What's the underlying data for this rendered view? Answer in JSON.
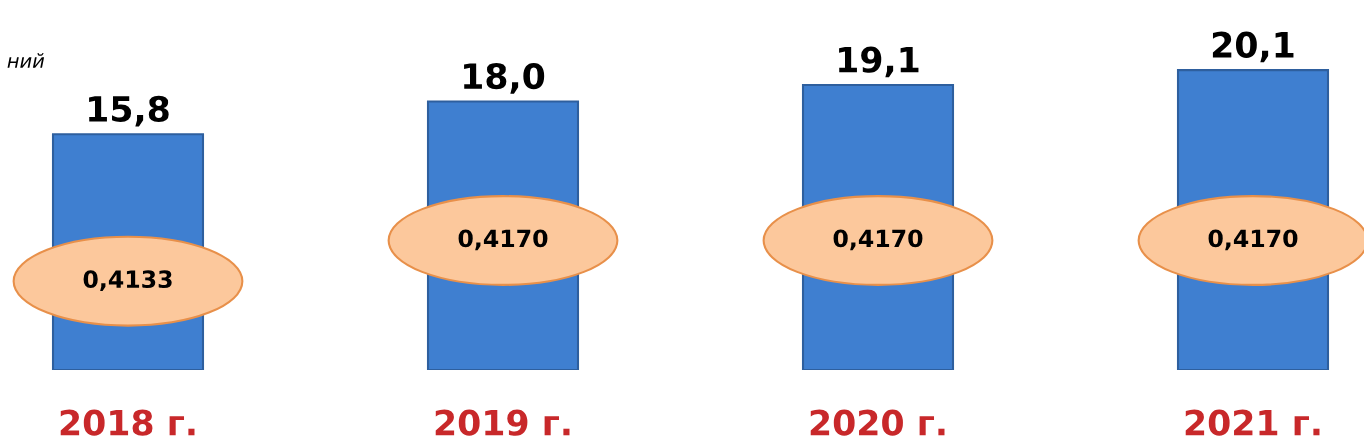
{
  "chart_data": {
    "type": "bar",
    "categories": [
      "2018 г.",
      "2019 г.",
      "2020 г.",
      "2021 г."
    ],
    "values": [
      15.8,
      18.0,
      19.1,
      20.1
    ],
    "value_labels": [
      "15,8",
      "18,0",
      "19,1",
      "20,1"
    ],
    "color": "#3f7fd0",
    "annotations": [
      "ний",
      "0,4133",
      "0,4170",
      "0,4170",
      "0,4170"
    ],
    "grid": false,
    "legend": false
  }
}
